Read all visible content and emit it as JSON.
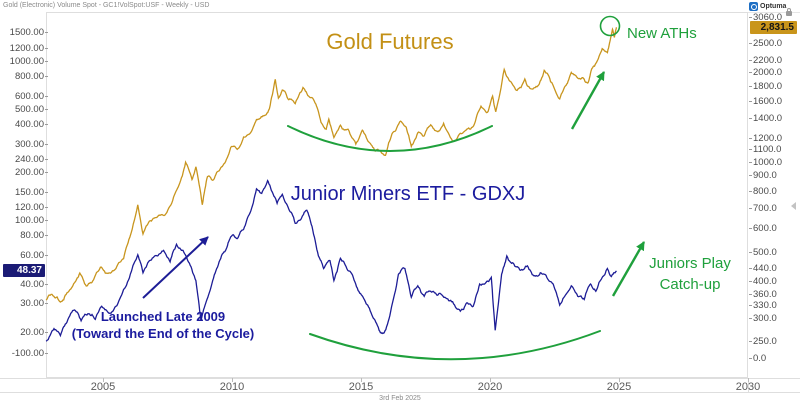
{
  "window": {
    "title": "Gold (Electronic) Volume Spot - GC1!VolSpot:USF - Weekly - USD"
  },
  "brand": {
    "logo_text": "Optuma"
  },
  "axes": {
    "left": {
      "ticks": [
        "1500.00",
        "1200.00",
        "1000.00",
        "800.00",
        "600.00",
        "500.00",
        "400.00",
        "300.00",
        "240.00",
        "200.00",
        "150.00",
        "120.00",
        "100.00",
        "80.00",
        "60.00",
        "40.00",
        "30.00",
        "20.00",
        "-100.00"
      ],
      "badge": "48.37"
    },
    "right": {
      "ticks": [
        "3060.0",
        "2500.0",
        "2200.0",
        "2000.0",
        "1800.0",
        "1600.0",
        "1400.0",
        "1200.0",
        "1100.0",
        "1000.0",
        "900.0",
        "800.0",
        "700.0",
        "600.0",
        "500.0",
        "440.0",
        "400.0",
        "360.0",
        "330.0",
        "300.0",
        "250.0",
        "0.0"
      ],
      "badge": "2,831.5"
    },
    "bottom": {
      "ticks": [
        "2005",
        "2010",
        "2015",
        "2020",
        "2025",
        "2030"
      ]
    },
    "date_stamp": "3rd Feb 2025"
  },
  "annotations": {
    "gold_label": "Gold Futures",
    "junior_label": "Junior Miners ETF - GDXJ",
    "new_aths": "New ATHs",
    "juniors_play_line1": "Juniors Play",
    "juniors_play_line2": "Catch-up",
    "launched_line1": "Launched Late 2009",
    "launched_line2": "(Toward the End of the Cycle)"
  },
  "colors": {
    "gold": "#C8951E",
    "navy": "#1D1D96",
    "green": "#1FA03C",
    "badge_left_bg": "#1B1B75",
    "badge_right_bg": "#C9951B",
    "gold_text": "#C39015",
    "navy_text": "#1B1B9E"
  },
  "chart_data": {
    "type": "line",
    "title": "Gold Futures vs Junior Miners ETF - GDXJ",
    "timeframe": "Weekly",
    "scale": "log",
    "grid": false,
    "legend": "none",
    "x_range": [
      2002.8,
      2030
    ],
    "x_ticks": [
      2005,
      2010,
      2015,
      2020,
      2025,
      2030
    ],
    "right_axis": {
      "series": "Gold Futures",
      "range": [
        0,
        3060
      ],
      "last_price": 2831.5
    },
    "left_axis": {
      "series": "Junior Miners ETF - GDXJ",
      "range": [
        20,
        1500
      ],
      "last_price": 48.37
    },
    "series": [
      {
        "name": "Gold Futures",
        "axis": "right",
        "color": "#C8951E",
        "points": [
          [
            2002.8,
            345
          ],
          [
            2003.1,
            355
          ],
          [
            2003.35,
            340
          ],
          [
            2003.6,
            365
          ],
          [
            2003.9,
            395
          ],
          [
            2004.1,
            425
          ],
          [
            2004.35,
            385
          ],
          [
            2004.6,
            400
          ],
          [
            2004.9,
            445
          ],
          [
            2005.15,
            425
          ],
          [
            2005.5,
            440
          ],
          [
            2005.8,
            475
          ],
          [
            2006.0,
            550
          ],
          [
            2006.35,
            720
          ],
          [
            2006.55,
            575
          ],
          [
            2006.8,
            635
          ],
          [
            2007.1,
            655
          ],
          [
            2007.4,
            665
          ],
          [
            2007.7,
            745
          ],
          [
            2007.95,
            840
          ],
          [
            2008.2,
            1000
          ],
          [
            2008.45,
            875
          ],
          [
            2008.6,
            965
          ],
          [
            2008.85,
            720
          ],
          [
            2009.05,
            895
          ],
          [
            2009.25,
            870
          ],
          [
            2009.5,
            935
          ],
          [
            2009.75,
            1005
          ],
          [
            2009.95,
            1120
          ],
          [
            2010.2,
            1105
          ],
          [
            2010.45,
            1215
          ],
          [
            2010.7,
            1250
          ],
          [
            2010.95,
            1390
          ],
          [
            2011.2,
            1430
          ],
          [
            2011.45,
            1510
          ],
          [
            2011.68,
            1895
          ],
          [
            2011.8,
            1640
          ],
          [
            2011.95,
            1745
          ],
          [
            2012.2,
            1620
          ],
          [
            2012.45,
            1570
          ],
          [
            2012.75,
            1780
          ],
          [
            2013.0,
            1655
          ],
          [
            2013.25,
            1565
          ],
          [
            2013.45,
            1360
          ],
          [
            2013.65,
            1290
          ],
          [
            2013.75,
            1395
          ],
          [
            2013.95,
            1210
          ],
          [
            2014.2,
            1330
          ],
          [
            2014.5,
            1290
          ],
          [
            2014.8,
            1150
          ],
          [
            2015.05,
            1280
          ],
          [
            2015.3,
            1170
          ],
          [
            2015.55,
            1090
          ],
          [
            2015.95,
            1055
          ],
          [
            2016.2,
            1245
          ],
          [
            2016.5,
            1365
          ],
          [
            2016.75,
            1310
          ],
          [
            2016.95,
            1130
          ],
          [
            2017.2,
            1255
          ],
          [
            2017.45,
            1225
          ],
          [
            2017.7,
            1335
          ],
          [
            2017.95,
            1270
          ],
          [
            2018.2,
            1350
          ],
          [
            2018.55,
            1175
          ],
          [
            2018.85,
            1250
          ],
          [
            2019.1,
            1290
          ],
          [
            2019.4,
            1345
          ],
          [
            2019.65,
            1540
          ],
          [
            2019.9,
            1470
          ],
          [
            2020.1,
            1665
          ],
          [
            2020.22,
            1475
          ],
          [
            2020.55,
            2045
          ],
          [
            2020.8,
            1865
          ],
          [
            2021.05,
            1740
          ],
          [
            2021.35,
            1900
          ],
          [
            2021.6,
            1760
          ],
          [
            2021.85,
            1800
          ],
          [
            2022.1,
            2030
          ],
          [
            2022.35,
            1860
          ],
          [
            2022.7,
            1630
          ],
          [
            2022.95,
            1810
          ],
          [
            2023.15,
            2000
          ],
          [
            2023.35,
            1935
          ],
          [
            2023.6,
            1920
          ],
          [
            2023.8,
            1845
          ],
          [
            2023.95,
            2060
          ],
          [
            2024.15,
            2180
          ],
          [
            2024.35,
            2400
          ],
          [
            2024.55,
            2330
          ],
          [
            2024.65,
            2545
          ],
          [
            2024.75,
            2790
          ],
          [
            2024.82,
            2620
          ],
          [
            2024.9,
            2831.5
          ]
        ]
      },
      {
        "name": "Junior Miners ETF - GDXJ",
        "axis": "left",
        "color": "#1D1D96",
        "points": [
          [
            2002.8,
            17.5
          ],
          [
            2003.1,
            21
          ],
          [
            2003.35,
            19
          ],
          [
            2003.6,
            23
          ],
          [
            2003.9,
            27.5
          ],
          [
            2004.15,
            23.5
          ],
          [
            2004.45,
            26
          ],
          [
            2004.7,
            24
          ],
          [
            2004.95,
            29
          ],
          [
            2005.2,
            26.5
          ],
          [
            2005.5,
            29
          ],
          [
            2005.8,
            37
          ],
          [
            2006.1,
            48
          ],
          [
            2006.35,
            61
          ],
          [
            2006.55,
            47
          ],
          [
            2006.8,
            56
          ],
          [
            2007.1,
            60
          ],
          [
            2007.35,
            65
          ],
          [
            2007.6,
            55
          ],
          [
            2007.85,
            71
          ],
          [
            2008.1,
            65
          ],
          [
            2008.35,
            54
          ],
          [
            2008.6,
            42
          ],
          [
            2008.8,
            23.5
          ],
          [
            2009.0,
            31
          ],
          [
            2009.25,
            42
          ],
          [
            2009.5,
            55
          ],
          [
            2009.75,
            65
          ],
          [
            2009.95,
            79
          ],
          [
            2010.2,
            77
          ],
          [
            2010.45,
            88
          ],
          [
            2010.7,
            112
          ],
          [
            2010.95,
            158
          ],
          [
            2011.15,
            148
          ],
          [
            2011.38,
            178
          ],
          [
            2011.55,
            152
          ],
          [
            2011.75,
            128
          ],
          [
            2011.95,
            146
          ],
          [
            2012.2,
            118
          ],
          [
            2012.45,
            96
          ],
          [
            2012.7,
            104
          ],
          [
            2012.9,
            116
          ],
          [
            2013.1,
            92
          ],
          [
            2013.35,
            60
          ],
          [
            2013.55,
            50
          ],
          [
            2013.8,
            56
          ],
          [
            2013.95,
            42
          ],
          [
            2014.2,
            58
          ],
          [
            2014.45,
            50
          ],
          [
            2014.7,
            44
          ],
          [
            2014.95,
            35
          ],
          [
            2015.2,
            30
          ],
          [
            2015.45,
            25
          ],
          [
            2015.7,
            20.5
          ],
          [
            2015.9,
            19.8
          ],
          [
            2016.15,
            27
          ],
          [
            2016.45,
            46
          ],
          [
            2016.7,
            50
          ],
          [
            2016.95,
            33
          ],
          [
            2017.2,
            39
          ],
          [
            2017.45,
            33.5
          ],
          [
            2017.7,
            36
          ],
          [
            2017.95,
            34
          ],
          [
            2018.25,
            33
          ],
          [
            2018.55,
            31
          ],
          [
            2018.85,
            27
          ],
          [
            2019.1,
            30.5
          ],
          [
            2019.35,
            29
          ],
          [
            2019.6,
            40
          ],
          [
            2019.85,
            41
          ],
          [
            2020.05,
            44
          ],
          [
            2020.2,
            20.5
          ],
          [
            2020.45,
            46
          ],
          [
            2020.65,
            60
          ],
          [
            2020.9,
            54
          ],
          [
            2021.15,
            49
          ],
          [
            2021.45,
            52
          ],
          [
            2021.7,
            45
          ],
          [
            2021.95,
            47
          ],
          [
            2022.2,
            44
          ],
          [
            2022.45,
            40
          ],
          [
            2022.7,
            29.5
          ],
          [
            2022.95,
            34.5
          ],
          [
            2023.15,
            39
          ],
          [
            2023.4,
            33.5
          ],
          [
            2023.65,
            32
          ],
          [
            2023.9,
            40
          ],
          [
            2024.1,
            36
          ],
          [
            2024.35,
            44
          ],
          [
            2024.55,
            50
          ],
          [
            2024.7,
            44.5
          ],
          [
            2024.8,
            47
          ],
          [
            2024.9,
            48.37
          ]
        ]
      }
    ]
  }
}
